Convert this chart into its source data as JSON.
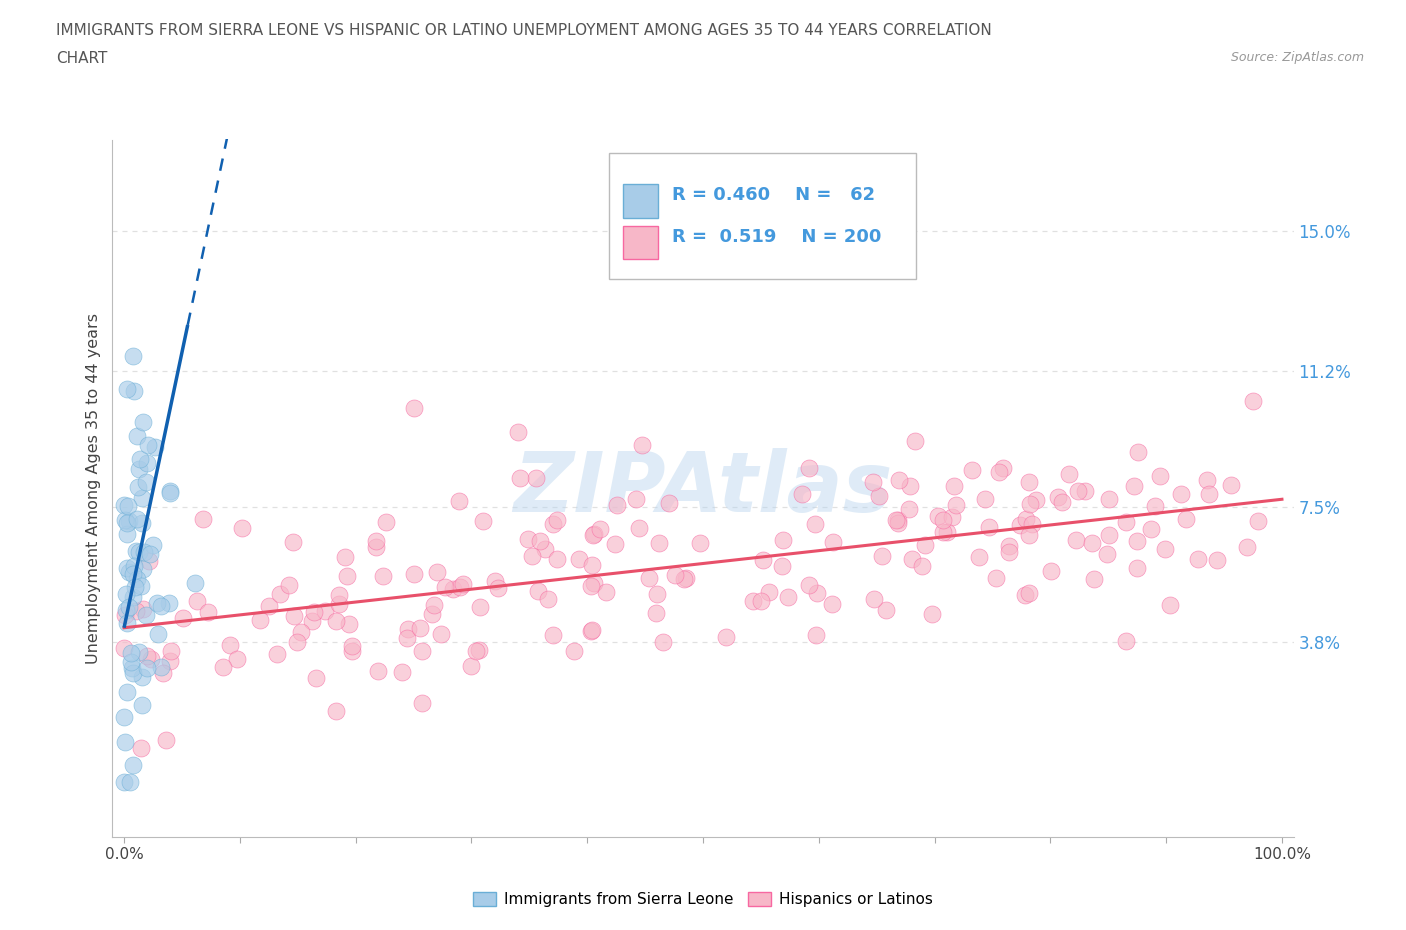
{
  "title_line1": "IMMIGRANTS FROM SIERRA LEONE VS HISPANIC OR LATINO UNEMPLOYMENT AMONG AGES 35 TO 44 YEARS CORRELATION",
  "title_line2": "CHART",
  "source": "Source: ZipAtlas.com",
  "ylabel": "Unemployment Among Ages 35 to 44 years",
  "yticks": [
    3.8,
    7.5,
    11.2,
    15.0
  ],
  "ytick_labels": [
    "3.8%",
    "7.5%",
    "11.2%",
    "15.0%"
  ],
  "xtick_labels": [
    "0.0%",
    "",
    "",
    "",
    "",
    "",
    "",
    "",
    "",
    "",
    "100.0%"
  ],
  "blue_color": "#a8cce8",
  "blue_edge": "#6aaed6",
  "pink_color": "#f7b7c8",
  "pink_edge": "#f768a1",
  "trend_blue": "#1060b0",
  "trend_pink": "#e8506a",
  "R_blue": 0.46,
  "N_blue": 62,
  "R_pink": 0.519,
  "N_pink": 200,
  "watermark": "ZIPAtlas",
  "background_color": "#ffffff",
  "grid_color": "#e0e0e0",
  "title_color": "#555555",
  "label_color": "#4499dd",
  "source_color": "#999999"
}
